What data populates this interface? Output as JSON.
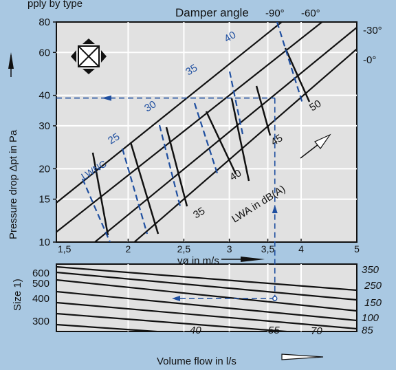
{
  "header_fragment": "pply  by  type",
  "title": "Damper angle",
  "angle_labels": [
    "-90°",
    "-60°",
    "-30°",
    "-0°"
  ],
  "top_chart": {
    "ylabel": "Pressure drop Δpt in Pa",
    "xlabel": "vø in m/s",
    "xticks": [
      "1,5",
      "2",
      "2,5",
      "3",
      "3,5",
      "4",
      "5"
    ],
    "yticks": [
      "10",
      "15",
      "20",
      "30",
      "40",
      "60",
      "80"
    ],
    "lwa_label": "LWA in dB(A)",
    "lwnc_label": "LWNC"
  },
  "bottom_chart": {
    "ylabel": "Size 1)",
    "xlabel": "Volume flow    in l/s",
    "left_ticks": [
      "600",
      "500",
      "400",
      "300"
    ],
    "right_sizes": [
      "350",
      "250",
      "150",
      "100",
      "85"
    ],
    "flow_ticks": [
      "40",
      "55",
      "70"
    ]
  },
  "chart_data": {
    "type": "line",
    "title": "Damper angle",
    "xlabel": "vø in m/s",
    "ylabel": "Pressure drop Δpt in Pa",
    "x_scale": "log",
    "y_scale": "log",
    "xlim": [
      1.5,
      5
    ],
    "ylim": [
      10,
      80
    ],
    "series": [
      {
        "name": "-90°",
        "x": [
          1.5,
          3.7
        ],
        "y": [
          14.5,
          80
        ]
      },
      {
        "name": "-60°",
        "x": [
          1.5,
          4.35
        ],
        "y": [
          11,
          80
        ]
      },
      {
        "name": "-30°",
        "x": [
          1.75,
          5
        ],
        "y": [
          10,
          76
        ]
      },
      {
        "name": "-0°",
        "x": [
          2.05,
          5
        ],
        "y": [
          10,
          62
        ]
      }
    ],
    "sound_power_isolines_dBA": [
      35,
      40,
      45,
      50
    ],
    "nc_isolines": [
      25,
      30,
      35,
      40
    ],
    "example_reading": {
      "velocity_m_s": 3.6,
      "pressure_drop_Pa": 39
    }
  }
}
